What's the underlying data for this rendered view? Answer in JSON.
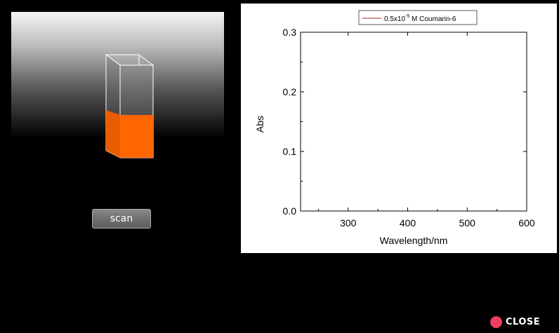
{
  "sample": {
    "liquid_color": "#ff6600",
    "fill_level_percent": 46
  },
  "controls": {
    "scan_label": "scan",
    "close_label": "CLOSE",
    "close_color": "#ef3e63"
  },
  "chart_data": {
    "type": "line",
    "legend": {
      "label_prefix": "0.5x10",
      "label_exponent": "-5",
      "label_suffix": " M Coumarin-6",
      "position": "top-center"
    },
    "series": [
      {
        "name": "0.5x10-5 M Coumarin-6",
        "color": "#b22222",
        "x": [],
        "y": []
      }
    ],
    "xlabel": "Wavelength/nm",
    "ylabel": "Abs",
    "xlim": [
      220,
      600
    ],
    "ylim": [
      0,
      0.3
    ],
    "x_ticks": [
      300,
      400,
      500,
      600
    ],
    "x_tick_labels": [
      "300",
      "400",
      "500",
      "600"
    ],
    "y_ticks": [
      0.0,
      0.1,
      0.2,
      0.3
    ],
    "y_tick_labels": [
      "0.0",
      "0.1",
      "0.2",
      "0.3"
    ],
    "grid": false
  }
}
